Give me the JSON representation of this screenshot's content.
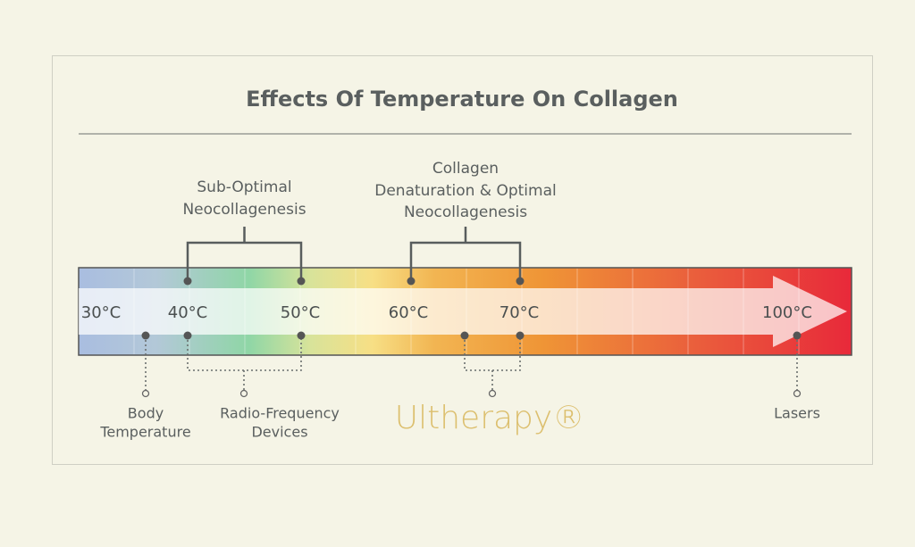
{
  "title": "Effects Of Temperature On Collagen",
  "brackets": [
    {
      "lines": [
        "Sub-Optimal",
        "Neocollagenesis"
      ]
    },
    {
      "lines": [
        "Collagen",
        "Denaturation & Optimal",
        "Neocollagenesis"
      ]
    }
  ],
  "scale_labels": [
    "30°C",
    "40°C",
    "50°C",
    "60°C",
    "70°C",
    "100°C"
  ],
  "devices": [
    {
      "lines": [
        "Body",
        "Temperature"
      ]
    },
    {
      "lines": [
        "Radio-Frequency",
        "Devices"
      ]
    },
    {
      "lines": [
        "Ultherapy®"
      ]
    },
    {
      "lines": [
        "Lasers"
      ]
    }
  ]
}
